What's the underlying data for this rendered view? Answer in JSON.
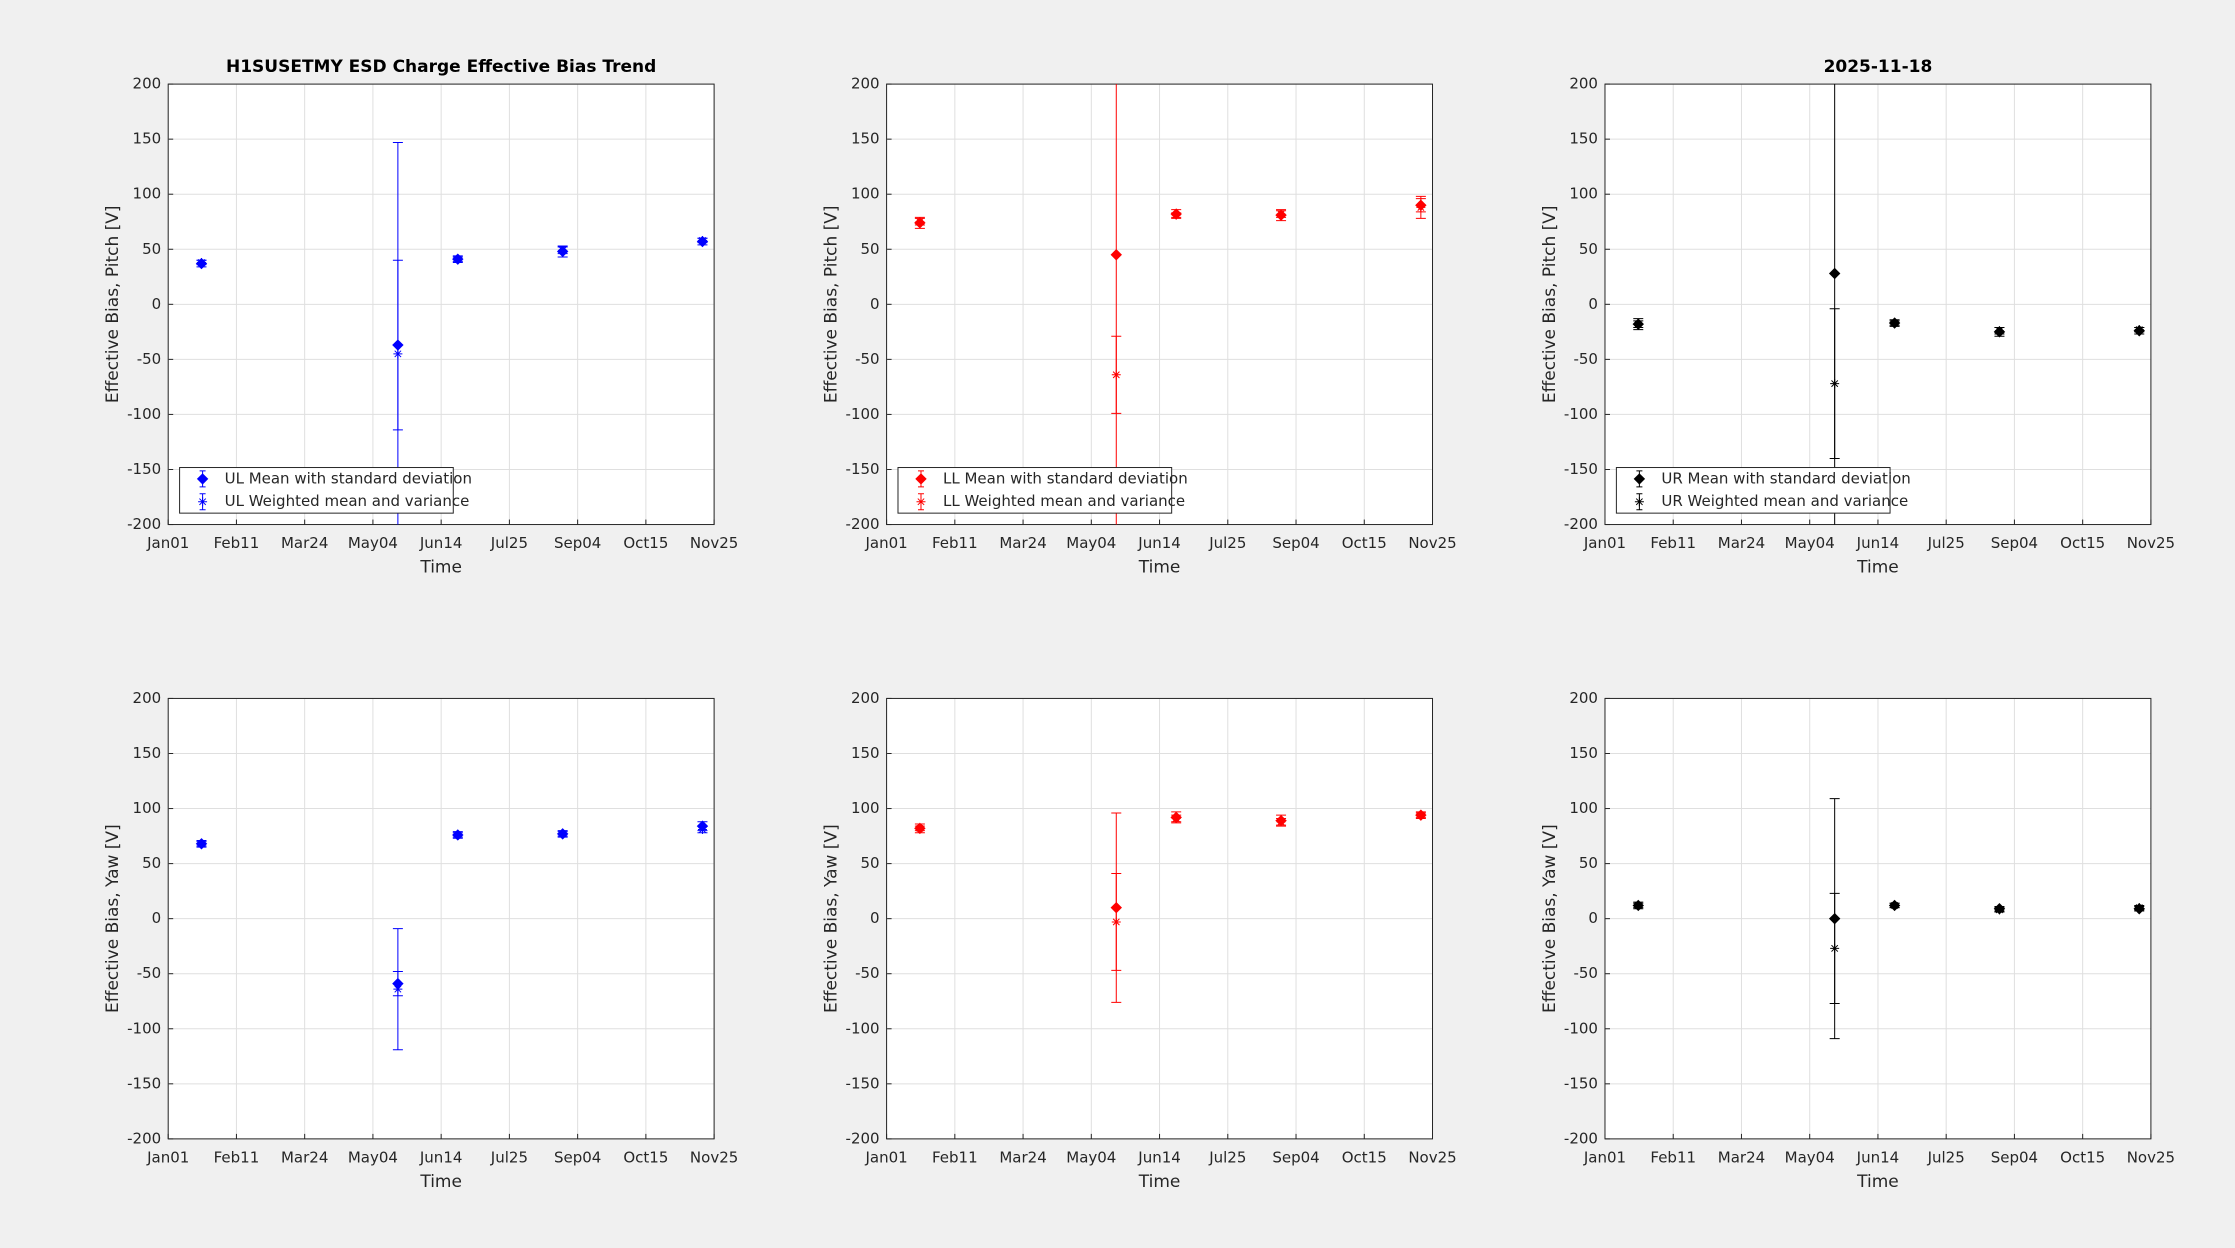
{
  "chart_data": [
    {
      "type": "errorbar",
      "title": "H1SUSETMY ESD Charge Effective Bias Trend",
      "xlabel": "Time",
      "ylabel": "Effective Bias, Pitch [V]",
      "x": [
        20,
        138,
        174,
        237,
        321
      ],
      "xlim": [
        0,
        328
      ],
      "xticks": [
        {
          "value": 0,
          "label": "Jan01"
        },
        {
          "value": 41,
          "label": "Feb11"
        },
        {
          "value": 82,
          "label": "Mar24"
        },
        {
          "value": 123,
          "label": "May04"
        },
        {
          "value": 164,
          "label": "Jun14"
        },
        {
          "value": 205,
          "label": "Jul25"
        },
        {
          "value": 246,
          "label": "Sep04"
        },
        {
          "value": 287,
          "label": "Oct15"
        },
        {
          "value": 328,
          "label": "Nov25"
        }
      ],
      "ylim": [
        -200,
        200
      ],
      "yticks": [
        -200,
        -150,
        -100,
        -50,
        0,
        50,
        100,
        150,
        200
      ],
      "grid": true,
      "legend": "lower left",
      "series": [
        {
          "name": "UL Mean with standard deviation",
          "color": "#0000ff",
          "marker": "diamond",
          "values": [
            37,
            -37,
            41,
            48,
            57
          ],
          "errors": [
            3,
            77,
            3,
            5,
            3
          ]
        },
        {
          "name": "UL Weighted mean and variance",
          "color": "#0000ff",
          "marker": "asterisk",
          "values": [
            38,
            -45,
            41,
            49,
            58
          ],
          "errors": [
            2,
            192,
            2,
            3,
            2
          ]
        }
      ]
    },
    {
      "type": "errorbar",
      "xlabel": "Time",
      "ylabel": "Effective Bias, Pitch [V]",
      "x": [
        20,
        138,
        174,
        237,
        321
      ],
      "xlim": [
        0,
        328
      ],
      "xticks": [
        {
          "value": 0,
          "label": "Jan01"
        },
        {
          "value": 41,
          "label": "Feb11"
        },
        {
          "value": 82,
          "label": "Mar24"
        },
        {
          "value": 123,
          "label": "May04"
        },
        {
          "value": 164,
          "label": "Jun14"
        },
        {
          "value": 205,
          "label": "Jul25"
        },
        {
          "value": 246,
          "label": "Sep04"
        },
        {
          "value": 287,
          "label": "Oct15"
        },
        {
          "value": 328,
          "label": "Nov25"
        }
      ],
      "ylim": [
        -200,
        200
      ],
      "yticks": [
        -200,
        -150,
        -100,
        -50,
        0,
        50,
        100,
        150,
        200
      ],
      "grid": true,
      "legend": "lower left",
      "series": [
        {
          "name": "LL Mean with standard deviation",
          "color": "#ff0000",
          "marker": "diamond",
          "values": [
            74,
            45,
            82,
            81,
            90
          ],
          "errors": [
            5,
            300,
            4,
            5,
            6
          ]
        },
        {
          "name": "LL Weighted mean and variance",
          "color": "#ff0000",
          "marker": "asterisk",
          "values": [
            75,
            -64,
            81,
            82,
            88
          ],
          "errors": [
            3,
            35,
            2,
            3,
            10
          ]
        }
      ]
    },
    {
      "type": "errorbar",
      "title": "2025-11-18",
      "xlabel": "Time",
      "ylabel": "Effective Bias, Pitch [V]",
      "x": [
        20,
        138,
        174,
        237,
        321
      ],
      "xlim": [
        0,
        328
      ],
      "xticks": [
        {
          "value": 0,
          "label": "Jan01"
        },
        {
          "value": 41,
          "label": "Feb11"
        },
        {
          "value": 82,
          "label": "Mar24"
        },
        {
          "value": 123,
          "label": "May04"
        },
        {
          "value": 164,
          "label": "Jun14"
        },
        {
          "value": 205,
          "label": "Jul25"
        },
        {
          "value": 246,
          "label": "Sep04"
        },
        {
          "value": 287,
          "label": "Oct15"
        },
        {
          "value": 328,
          "label": "Nov25"
        }
      ],
      "ylim": [
        -200,
        200
      ],
      "yticks": [
        -200,
        -150,
        -100,
        -50,
        0,
        50,
        100,
        150,
        200
      ],
      "grid": true,
      "legend": "lower left",
      "series": [
        {
          "name": "UR Mean with standard deviation",
          "color": "#000000",
          "marker": "diamond",
          "values": [
            -18,
            28,
            -17,
            -25,
            -24
          ],
          "errors": [
            5,
            300,
            3,
            4,
            3
          ]
        },
        {
          "name": "UR Weighted mean and variance",
          "color": "#000000",
          "marker": "asterisk",
          "values": [
            -18,
            -72,
            -17,
            -24,
            -23
          ],
          "errors": [
            3,
            68,
            2,
            3,
            2
          ]
        }
      ]
    },
    {
      "type": "errorbar",
      "xlabel": "Time",
      "ylabel": "Effective Bias, Yaw [V]",
      "x": [
        20,
        138,
        174,
        237,
        321
      ],
      "xlim": [
        0,
        328
      ],
      "xticks": [
        {
          "value": 0,
          "label": "Jan01"
        },
        {
          "value": 41,
          "label": "Feb11"
        },
        {
          "value": 82,
          "label": "Mar24"
        },
        {
          "value": 123,
          "label": "May04"
        },
        {
          "value": 164,
          "label": "Jun14"
        },
        {
          "value": 205,
          "label": "Jul25"
        },
        {
          "value": 246,
          "label": "Sep04"
        },
        {
          "value": 287,
          "label": "Oct15"
        },
        {
          "value": 328,
          "label": "Nov25"
        }
      ],
      "ylim": [
        -200,
        200
      ],
      "yticks": [
        -200,
        -150,
        -100,
        -50,
        0,
        50,
        100,
        150,
        200
      ],
      "grid": true,
      "series": [
        {
          "color": "#0000ff",
          "marker": "diamond",
          "values": [
            68,
            -59,
            76,
            77,
            84
          ],
          "errors": [
            3,
            11,
            3,
            3,
            4
          ]
        },
        {
          "color": "#0000ff",
          "marker": "asterisk",
          "values": [
            68,
            -64,
            76,
            77,
            81
          ],
          "errors": [
            2,
            55,
            2,
            2,
            3
          ]
        }
      ]
    },
    {
      "type": "errorbar",
      "xlabel": "Time",
      "ylabel": "Effective Bias, Yaw [V]",
      "x": [
        20,
        138,
        174,
        237,
        321
      ],
      "xlim": [
        0,
        328
      ],
      "xticks": [
        {
          "value": 0,
          "label": "Jan01"
        },
        {
          "value": 41,
          "label": "Feb11"
        },
        {
          "value": 82,
          "label": "Mar24"
        },
        {
          "value": 123,
          "label": "May04"
        },
        {
          "value": 164,
          "label": "Jun14"
        },
        {
          "value": 205,
          "label": "Jul25"
        },
        {
          "value": 246,
          "label": "Sep04"
        },
        {
          "value": 287,
          "label": "Oct15"
        },
        {
          "value": 328,
          "label": "Nov25"
        }
      ],
      "ylim": [
        -200,
        200
      ],
      "yticks": [
        -200,
        -150,
        -100,
        -50,
        0,
        50,
        100,
        150,
        200
      ],
      "grid": true,
      "series": [
        {
          "color": "#ff0000",
          "marker": "diamond",
          "values": [
            82,
            10,
            92,
            89,
            94
          ],
          "errors": [
            4,
            86,
            5,
            5,
            3
          ]
        },
        {
          "color": "#ff0000",
          "marker": "asterisk",
          "values": [
            82,
            -3,
            91,
            88,
            94
          ],
          "errors": [
            2,
            44,
            3,
            3,
            2
          ]
        }
      ]
    },
    {
      "type": "errorbar",
      "xlabel": "Time",
      "ylabel": "Effective Bias, Yaw [V]",
      "x": [
        20,
        138,
        174,
        237,
        321
      ],
      "xlim": [
        0,
        328
      ],
      "xticks": [
        {
          "value": 0,
          "label": "Jan01"
        },
        {
          "value": 41,
          "label": "Feb11"
        },
        {
          "value": 82,
          "label": "Mar24"
        },
        {
          "value": 123,
          "label": "May04"
        },
        {
          "value": 164,
          "label": "Jun14"
        },
        {
          "value": 205,
          "label": "Jul25"
        },
        {
          "value": 246,
          "label": "Sep04"
        },
        {
          "value": 287,
          "label": "Oct15"
        },
        {
          "value": 328,
          "label": "Nov25"
        }
      ],
      "ylim": [
        -200,
        200
      ],
      "yticks": [
        -200,
        -150,
        -100,
        -50,
        0,
        50,
        100,
        150,
        200
      ],
      "grid": true,
      "series": [
        {
          "color": "#000000",
          "marker": "diamond",
          "values": [
            12,
            0,
            12,
            9,
            9
          ],
          "errors": [
            3,
            109,
            2,
            2,
            2
          ]
        },
        {
          "color": "#000000",
          "marker": "asterisk",
          "values": [
            12,
            -27,
            12,
            8,
            10
          ],
          "errors": [
            2,
            50,
            2,
            2,
            2
          ]
        }
      ]
    }
  ]
}
